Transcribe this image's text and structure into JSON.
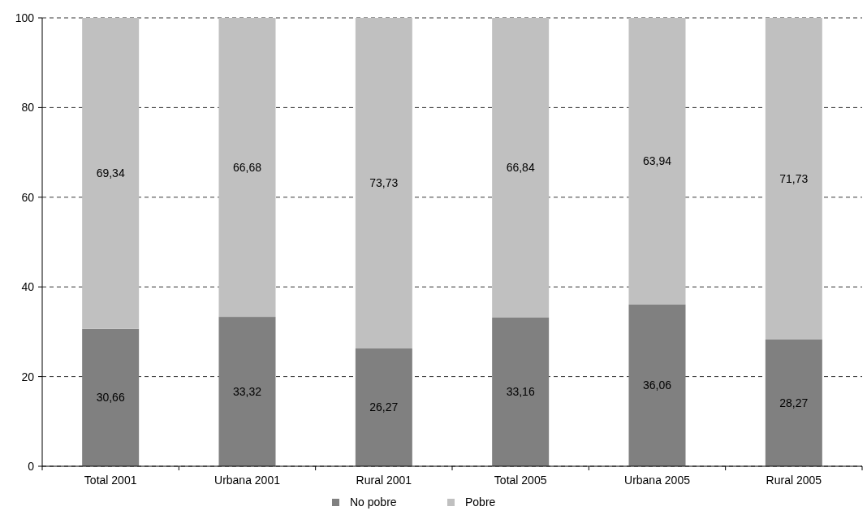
{
  "chart_data": {
    "type": "bar",
    "stacked": true,
    "categories": [
      "Total 2001",
      "Urbana 2001",
      "Rural 2001",
      "Total 2005",
      "Urbana 2005",
      "Rural 2005"
    ],
    "series": [
      {
        "name": "No pobre",
        "color": "#808080",
        "values": [
          30.66,
          33.32,
          26.27,
          33.16,
          36.06,
          28.27
        ],
        "value_labels": [
          "30,66",
          "33,32",
          "26,27",
          "33,16",
          "36,06",
          "28,27"
        ]
      },
      {
        "name": "Pobre",
        "color": "#c0c0c0",
        "values": [
          69.34,
          66.68,
          73.73,
          66.84,
          63.94,
          71.73
        ],
        "value_labels": [
          "69,34",
          "66,68",
          "73,73",
          "66,84",
          "63,94",
          "71,73"
        ]
      }
    ],
    "ylim": [
      0,
      100
    ],
    "yticks": [
      0,
      20,
      40,
      60,
      80,
      100
    ],
    "grid": "y",
    "legend": "bottom"
  }
}
